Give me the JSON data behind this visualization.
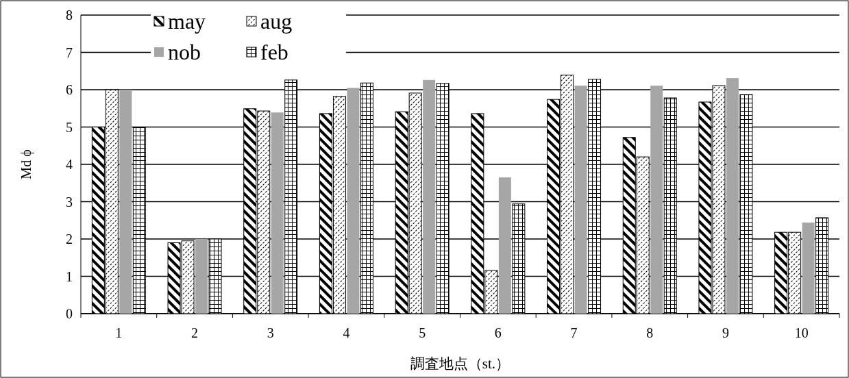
{
  "chart_data": {
    "type": "bar",
    "ylabel": "Md ϕ",
    "xlabel": "調査地点（st.）",
    "categories": [
      "1",
      "2",
      "3",
      "4",
      "5",
      "6",
      "7",
      "8",
      "9",
      "10"
    ],
    "series": [
      {
        "name": "may",
        "color": "#000000",
        "values": [
          5.0,
          1.9,
          5.49,
          5.36,
          5.41,
          5.36,
          5.74,
          4.72,
          5.67,
          2.18
        ]
      },
      {
        "name": "aug",
        "color": "#000000",
        "values": [
          6.0,
          1.95,
          5.43,
          5.82,
          5.91,
          1.16,
          6.39,
          4.2,
          6.11,
          2.18
        ]
      },
      {
        "name": "nob",
        "color": "#a6a6a6",
        "values": [
          6.0,
          2.0,
          5.39,
          6.05,
          6.26,
          3.65,
          6.11,
          6.11,
          6.31,
          2.44
        ]
      },
      {
        "name": "feb",
        "color": "#000000",
        "values": [
          5.0,
          2.0,
          6.26,
          6.18,
          6.17,
          2.94,
          6.28,
          5.78,
          5.87,
          2.57
        ]
      }
    ],
    "ylim": [
      0,
      8
    ],
    "yticks": [
      0,
      1,
      2,
      3,
      4,
      5,
      6,
      7,
      8
    ],
    "grid": "y",
    "legend": "top left"
  }
}
